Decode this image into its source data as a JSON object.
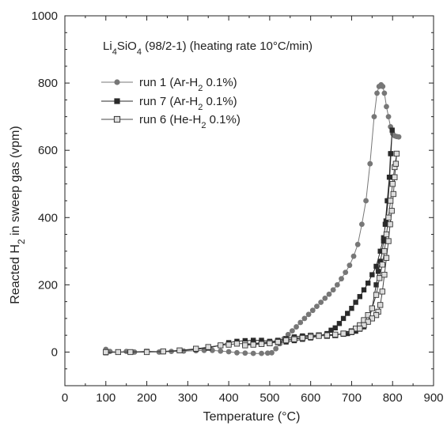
{
  "chart_data": {
    "type": "scatter",
    "title": "",
    "annotation": {
      "prefix": "Li",
      "sub1": "4",
      "mid": "SiO",
      "sub2": "4",
      "suffix": " (98/2-1) (heating rate 10°C/min)"
    },
    "xlabel": "Temperature (°C)",
    "ylabel": {
      "prefix": "Reacted H",
      "sub": "2",
      "suffix": " in sweep gas (vpm)"
    },
    "xlim": [
      0,
      900
    ],
    "ylim": [
      -100,
      1000
    ],
    "xticks": [
      0,
      100,
      200,
      300,
      400,
      500,
      600,
      700,
      800,
      900
    ],
    "yticks": [
      0,
      200,
      400,
      600,
      800,
      1000
    ],
    "grid": false,
    "legend_position": "top-left",
    "series": [
      {
        "name": {
          "prefix": "run 1 (Ar-H",
          "sub": "2",
          "suffix": " 0.1%)"
        },
        "marker": "circle",
        "color": "#777777",
        "points": [
          [
            100,
            8
          ],
          [
            110,
            2
          ],
          [
            130,
            0
          ],
          [
            150,
            2
          ],
          [
            170,
            0
          ],
          [
            200,
            1
          ],
          [
            230,
            0
          ],
          [
            260,
            2
          ],
          [
            290,
            3
          ],
          [
            320,
            4
          ],
          [
            340,
            5
          ],
          [
            360,
            5
          ],
          [
            380,
            3
          ],
          [
            400,
            1
          ],
          [
            420,
            -2
          ],
          [
            440,
            -3
          ],
          [
            460,
            -4
          ],
          [
            480,
            -4
          ],
          [
            495,
            -3
          ],
          [
            505,
            -2
          ],
          [
            515,
            10
          ],
          [
            525,
            25
          ],
          [
            535,
            40
          ],
          [
            545,
            52
          ],
          [
            555,
            63
          ],
          [
            565,
            75
          ],
          [
            575,
            88
          ],
          [
            585,
            100
          ],
          [
            595,
            112
          ],
          [
            605,
            124
          ],
          [
            615,
            136
          ],
          [
            625,
            148
          ],
          [
            635,
            160
          ],
          [
            645,
            172
          ],
          [
            655,
            185
          ],
          [
            665,
            200
          ],
          [
            675,
            218
          ],
          [
            685,
            237
          ],
          [
            695,
            258
          ],
          [
            705,
            285
          ],
          [
            715,
            320
          ],
          [
            725,
            380
          ],
          [
            735,
            450
          ],
          [
            745,
            560
          ],
          [
            755,
            700
          ],
          [
            762,
            770
          ],
          [
            767,
            790
          ],
          [
            772,
            795
          ],
          [
            776,
            790
          ],
          [
            780,
            770
          ],
          [
            785,
            730
          ],
          [
            790,
            700
          ],
          [
            795,
            670
          ],
          [
            800,
            650
          ],
          [
            805,
            643
          ],
          [
            810,
            641
          ],
          [
            815,
            640
          ]
        ]
      },
      {
        "name": {
          "prefix": "run 7 (Ar-H",
          "sub": "2",
          "suffix": " 0.1%)"
        },
        "marker": "square",
        "color": "#2a2a2a",
        "points": [
          [
            100,
            -2
          ],
          [
            130,
            0
          ],
          [
            160,
            0
          ],
          [
            200,
            2
          ],
          [
            240,
            1
          ],
          [
            280,
            4
          ],
          [
            320,
            8
          ],
          [
            350,
            12
          ],
          [
            380,
            20
          ],
          [
            400,
            28
          ],
          [
            420,
            32
          ],
          [
            440,
            34
          ],
          [
            460,
            35
          ],
          [
            480,
            35
          ],
          [
            500,
            32
          ],
          [
            520,
            28
          ],
          [
            540,
            30
          ],
          [
            560,
            34
          ],
          [
            580,
            38
          ],
          [
            600,
            42
          ],
          [
            620,
            48
          ],
          [
            640,
            55
          ],
          [
            650,
            65
          ],
          [
            660,
            72
          ],
          [
            670,
            85
          ],
          [
            680,
            100
          ],
          [
            690,
            115
          ],
          [
            700,
            130
          ],
          [
            710,
            148
          ],
          [
            720,
            165
          ],
          [
            730,
            185
          ],
          [
            740,
            205
          ],
          [
            750,
            230
          ],
          [
            760,
            255
          ],
          [
            770,
            300
          ],
          [
            778,
            340
          ],
          [
            784,
            390
          ],
          [
            789,
            450
          ],
          [
            793,
            520
          ],
          [
            796,
            590
          ],
          [
            799,
            660
          ],
          [
            795,
            590
          ],
          [
            792,
            520
          ],
          [
            787,
            450
          ],
          [
            782,
            380
          ],
          [
            778,
            330
          ],
          [
            775,
            300
          ],
          [
            770,
            270
          ],
          [
            765,
            240
          ],
          [
            760,
            200
          ],
          [
            750,
            130
          ],
          [
            740,
            90
          ],
          [
            730,
            75
          ],
          [
            720,
            68
          ],
          [
            710,
            62
          ],
          [
            700,
            58
          ],
          [
            690,
            55
          ],
          [
            680,
            53
          ],
          [
            660,
            52
          ],
          [
            640,
            52
          ],
          [
            620,
            50
          ],
          [
            600,
            50
          ],
          [
            580,
            48
          ],
          [
            560,
            45
          ],
          [
            540,
            40
          ],
          [
            520,
            35
          ],
          [
            500,
            30
          ],
          [
            480,
            28
          ],
          [
            460,
            25
          ],
          [
            440,
            22
          ]
        ]
      },
      {
        "name": {
          "prefix": "run 6 (He-H",
          "sub": "2",
          "suffix": " 0.1%)"
        },
        "marker": "square-open",
        "color": "#444444",
        "points": [
          [
            100,
            0
          ],
          [
            130,
            0
          ],
          [
            160,
            0
          ],
          [
            200,
            0
          ],
          [
            240,
            2
          ],
          [
            280,
            5
          ],
          [
            320,
            10
          ],
          [
            350,
            15
          ],
          [
            380,
            20
          ],
          [
            400,
            22
          ],
          [
            420,
            25
          ],
          [
            440,
            25
          ],
          [
            460,
            24
          ],
          [
            480,
            25
          ],
          [
            500,
            28
          ],
          [
            520,
            32
          ],
          [
            540,
            36
          ],
          [
            560,
            40
          ],
          [
            580,
            44
          ],
          [
            600,
            48
          ],
          [
            620,
            50
          ],
          [
            640,
            48
          ],
          [
            660,
            50
          ],
          [
            680,
            55
          ],
          [
            700,
            62
          ],
          [
            710,
            70
          ],
          [
            720,
            80
          ],
          [
            730,
            95
          ],
          [
            740,
            110
          ],
          [
            750,
            130
          ],
          [
            760,
            170
          ],
          [
            768,
            220
          ],
          [
            775,
            260
          ],
          [
            780,
            300
          ],
          [
            785,
            350
          ],
          [
            790,
            400
          ],
          [
            795,
            450
          ],
          [
            800,
            500
          ],
          [
            805,
            550
          ],
          [
            810,
            590
          ],
          [
            808,
            560
          ],
          [
            805,
            520
          ],
          [
            802,
            470
          ],
          [
            798,
            420
          ],
          [
            794,
            380
          ],
          [
            790,
            330
          ],
          [
            785,
            280
          ],
          [
            780,
            230
          ],
          [
            775,
            180
          ],
          [
            770,
            140
          ],
          [
            765,
            120
          ],
          [
            760,
            110
          ],
          [
            750,
            100
          ],
          [
            740,
            90
          ],
          [
            730,
            80
          ],
          [
            720,
            70
          ],
          [
            700,
            60
          ],
          [
            680,
            55
          ],
          [
            660,
            52
          ],
          [
            640,
            50
          ],
          [
            620,
            48
          ],
          [
            600,
            45
          ],
          [
            580,
            42
          ],
          [
            560,
            38
          ],
          [
            540,
            35
          ],
          [
            520,
            30
          ],
          [
            500,
            26
          ],
          [
            480,
            24
          ],
          [
            460,
            22
          ],
          [
            440,
            20
          ]
        ]
      }
    ]
  }
}
